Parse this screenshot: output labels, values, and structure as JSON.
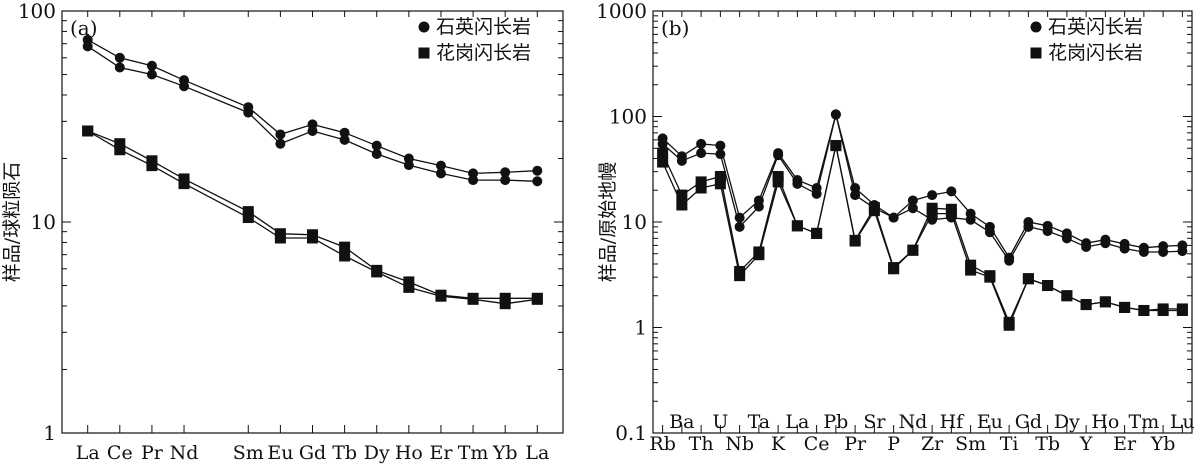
{
  "chart_data": [
    {
      "type": "line",
      "panel_label": "(a)",
      "ylabel": "样品/球粒陨石",
      "yscale": "log",
      "ylim": [
        1,
        100
      ],
      "y_ticks": [
        "1",
        "10",
        "100"
      ],
      "categories": [
        "La",
        "Ce",
        "Pr",
        "Nd",
        "Sm",
        "Eu",
        "Gd",
        "Tb",
        "Dy",
        "Ho",
        "Er",
        "Tm",
        "Yb",
        "La"
      ],
      "x_positions": [
        1,
        2,
        3,
        4,
        6,
        7,
        8,
        9,
        10,
        11,
        12,
        13,
        14,
        15
      ],
      "legend": [
        "石英闪长岩",
        "花岗闪长岩"
      ],
      "legend_position": "top-right",
      "series": [
        {
          "name": "石英闪长岩",
          "marker": "circle",
          "values": [
            73,
            60,
            55,
            47,
            35,
            26,
            29,
            26.5,
            23,
            20,
            18.5,
            17,
            17.2,
            17.5
          ]
        },
        {
          "name": "石英闪长岩",
          "marker": "circle",
          "values": [
            68,
            54,
            50,
            44,
            33,
            23.5,
            27,
            24.5,
            21,
            18.6,
            17,
            15.8,
            15.8,
            15.6
          ]
        },
        {
          "name": "花岗闪长岩",
          "marker": "square",
          "values": [
            27,
            23.5,
            19.5,
            16,
            11.2,
            8.8,
            8.7,
            7.6,
            5.9,
            5.2,
            4.5,
            4.35,
            4.35,
            4.35
          ]
        },
        {
          "name": "花岗闪长岩",
          "marker": "square",
          "values": [
            27,
            22,
            18.5,
            15.2,
            10.5,
            8.4,
            8.4,
            6.9,
            5.8,
            4.9,
            4.45,
            4.3,
            4.1,
            4.3
          ]
        }
      ]
    },
    {
      "type": "line",
      "panel_label": "(b)",
      "ylabel": "样品/原始地幔",
      "yscale": "log",
      "ylim": [
        0.1,
        1000
      ],
      "y_ticks": [
        "0.1",
        "1",
        "10",
        "100",
        "1000"
      ],
      "categories": [
        "Rb",
        "Ba",
        "Th",
        "U",
        "Nb",
        "Ta",
        "K",
        "La",
        "Ce",
        "Pb",
        "Pr",
        "Sr",
        "P",
        "Nd",
        "Zr",
        "Hf",
        "Sm",
        "Eu",
        "Ti",
        "Gd",
        "Tb",
        "Dy",
        "Y",
        "Ho",
        "Er",
        "Tm",
        "Yb",
        "Lu"
      ],
      "legend": [
        "石英闪长岩",
        "花岗闪长岩"
      ],
      "legend_position": "top-right",
      "series": [
        {
          "name": "石英闪长岩",
          "marker": "circle",
          "values": [
            62,
            42,
            55,
            53,
            11,
            16,
            45,
            25,
            21,
            105,
            21,
            14.5,
            11,
            16,
            18,
            19.5,
            12,
            9,
            4.6,
            10,
            9.2,
            7.8,
            6.3,
            6.8,
            6.2,
            5.7,
            5.9,
            6
          ]
        },
        {
          "name": "石英闪长岩",
          "marker": "circle",
          "values": [
            55,
            38,
            45,
            44,
            9,
            14,
            43,
            23,
            18.5,
            104,
            18,
            13.5,
            11,
            13.5,
            10.5,
            11,
            10.5,
            8,
            4.3,
            9,
            8.2,
            7,
            5.8,
            6.3,
            5.6,
            5.2,
            5.2,
            5.3
          ]
        },
        {
          "name": "花岗闪长岩",
          "marker": "square",
          "values": [
            45,
            18,
            24,
            27,
            3.4,
            5.2,
            27,
            9.2,
            7.8,
            53,
            6.7,
            13.7,
            3.7,
            5.4,
            13.5,
            13.2,
            3.9,
            3.1,
            1.12,
            2.9,
            2.5,
            2.0,
            1.65,
            1.75,
            1.55,
            1.45,
            1.45,
            1.45
          ]
        },
        {
          "name": "花岗闪长岩",
          "marker": "square",
          "values": [
            37,
            14.5,
            21,
            23,
            3.1,
            4.9,
            24,
            9.2,
            7.8,
            53,
            6.6,
            12.8,
            3.6,
            5.4,
            12,
            12,
            3.5,
            3.0,
            1.05,
            2.9,
            2.5,
            2.0,
            1.65,
            1.75,
            1.55,
            1.45,
            1.5,
            1.5
          ]
        }
      ]
    }
  ]
}
